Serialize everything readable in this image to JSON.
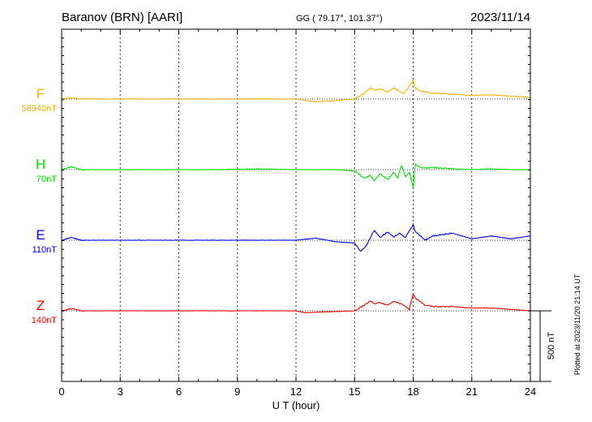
{
  "header": {
    "station": "Baranov (BRN)  [AARI]",
    "coords": "GG ( 79.17°, 101.37°)",
    "date": "2023/11/14"
  },
  "footer": {
    "plotted": "Plotted at 2023/11/20 21:14 UT"
  },
  "chart_data": {
    "type": "line",
    "xlabel": "U T (hour)",
    "xlim": [
      0,
      24
    ],
    "xticks": [
      0,
      3,
      6,
      9,
      12,
      15,
      18,
      21,
      24
    ],
    "xtick_labels": [
      "0",
      "3",
      "6",
      "9",
      "12",
      "15",
      "18",
      "21",
      "24"
    ],
    "scale_bar": {
      "value": 500,
      "label": "500 nT"
    },
    "grid": true,
    "series": [
      {
        "name": "F",
        "baseline_label": "58940nT",
        "color": "#f5b000",
        "x": [
          0,
          0.5,
          1,
          2,
          4,
          6,
          8,
          10,
          12,
          12.5,
          13,
          14,
          15,
          15.5,
          15.8,
          16,
          16.3,
          16.7,
          17,
          17.5,
          17.8,
          18,
          18.1,
          18.3,
          18.6,
          19,
          20,
          21,
          22,
          23,
          24
        ],
        "y": [
          0,
          10,
          0,
          0,
          0,
          0,
          0,
          0,
          0,
          -10,
          -20,
          -10,
          0,
          40,
          80,
          60,
          70,
          50,
          80,
          40,
          90,
          130,
          80,
          60,
          50,
          40,
          35,
          25,
          30,
          20,
          10
        ]
      },
      {
        "name": "H",
        "baseline_label": "70nT",
        "color": "#00e000",
        "x": [
          0,
          0.5,
          1,
          2,
          4,
          6,
          8,
          10,
          12,
          14,
          15,
          15.5,
          15.8,
          16,
          16.3,
          16.7,
          17,
          17.2,
          17.4,
          17.6,
          17.8,
          18,
          18.1,
          18.3,
          18.6,
          19,
          20,
          21,
          22,
          23,
          24
        ],
        "y": [
          0,
          20,
          0,
          0,
          0,
          0,
          0,
          5,
          0,
          0,
          -10,
          -60,
          -40,
          -80,
          -30,
          -70,
          -20,
          -60,
          30,
          -50,
          -20,
          -130,
          40,
          20,
          10,
          15,
          5,
          0,
          5,
          0,
          0
        ]
      },
      {
        "name": "E",
        "baseline_label": "110nT",
        "color": "#0000ff",
        "x": [
          0,
          0.5,
          1,
          2,
          4,
          6,
          8,
          10,
          12,
          13,
          14,
          15,
          15.3,
          15.6,
          16,
          16.3,
          16.7,
          17,
          17.3,
          17.6,
          18,
          18.1,
          18.3,
          18.6,
          19,
          20,
          21,
          22,
          23,
          24
        ],
        "y": [
          0,
          20,
          0,
          0,
          0,
          0,
          0,
          0,
          0,
          15,
          -10,
          -20,
          -80,
          -40,
          70,
          20,
          60,
          20,
          50,
          20,
          110,
          60,
          40,
          0,
          30,
          50,
          10,
          30,
          10,
          30
        ]
      },
      {
        "name": "Z",
        "baseline_label": "140nT",
        "color": "#ff0000",
        "x": [
          0,
          0.5,
          1,
          2,
          4,
          6,
          8,
          10,
          12,
          12.5,
          13,
          14,
          15,
          15.5,
          15.8,
          16,
          16.3,
          16.7,
          17,
          17.5,
          17.8,
          18,
          18.1,
          18.3,
          18.6,
          19,
          20,
          21,
          22,
          23,
          24
        ],
        "y": [
          0,
          15,
          0,
          0,
          0,
          0,
          0,
          0,
          0,
          -15,
          -10,
          -5,
          0,
          40,
          70,
          50,
          60,
          40,
          70,
          40,
          10,
          120,
          90,
          70,
          40,
          30,
          30,
          20,
          20,
          10,
          0
        ]
      }
    ]
  }
}
